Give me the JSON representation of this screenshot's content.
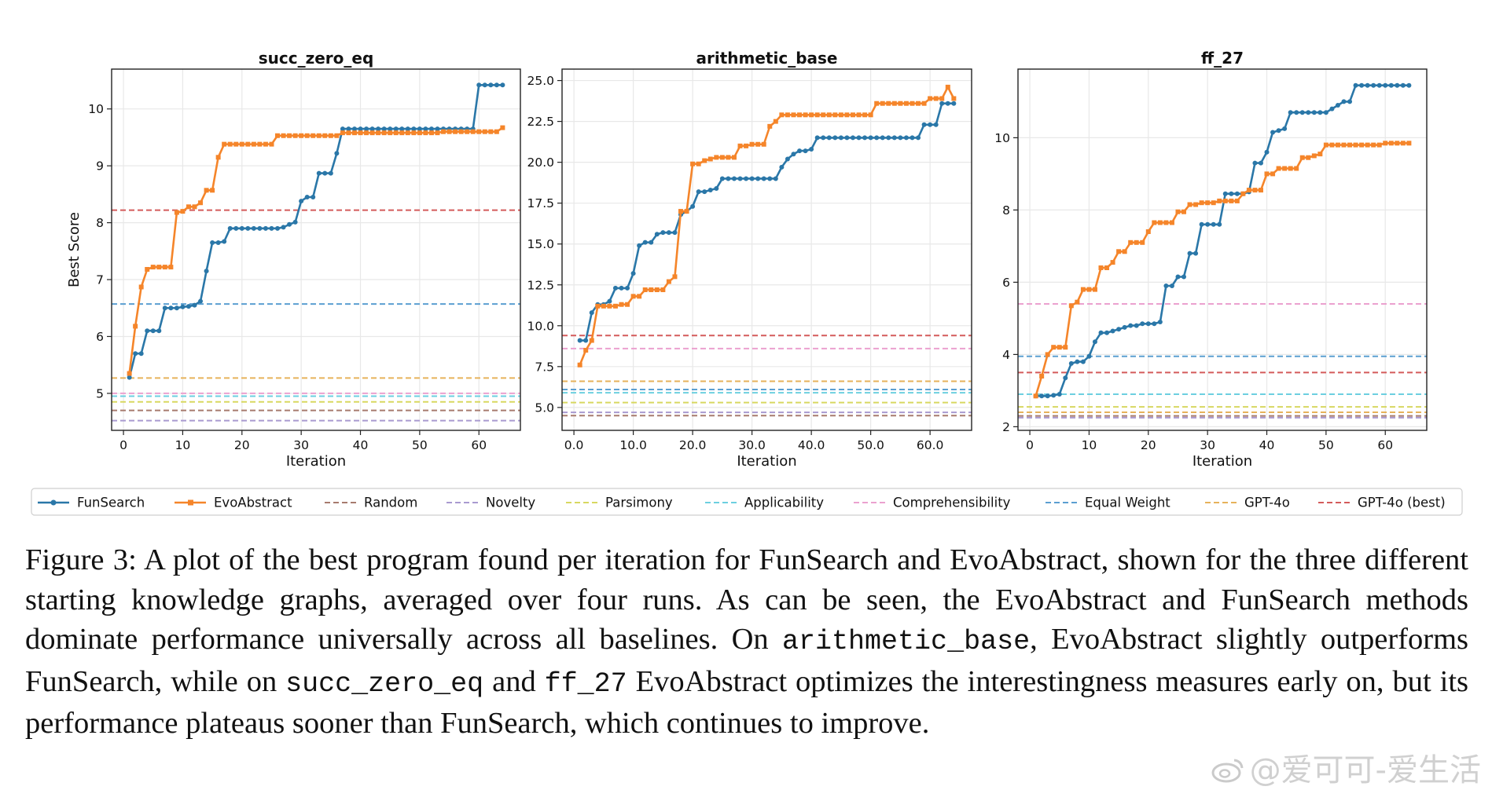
{
  "chart_data": [
    {
      "type": "line",
      "title": "succ_zero_eq",
      "xlabel": "Iteration",
      "ylabel": "Best Score",
      "xlim": [
        -2,
        67
      ],
      "ylim": [
        4.35,
        10.7
      ],
      "xticks": [
        0,
        10,
        20,
        30,
        40,
        50,
        60
      ],
      "yticks": [
        5,
        6,
        7,
        8,
        9,
        10
      ],
      "tick_format": "int",
      "grid": true,
      "series": [
        {
          "name": "FunSearch",
          "x": [
            1,
            2,
            3,
            4,
            5,
            6,
            7,
            8,
            9,
            10,
            11,
            12,
            13,
            14,
            15,
            16,
            17,
            18,
            19,
            20,
            21,
            22,
            23,
            24,
            25,
            26,
            27,
            28,
            29,
            30,
            31,
            32,
            33,
            34,
            35,
            36,
            37,
            38,
            39,
            40,
            41,
            42,
            43,
            44,
            45,
            46,
            47,
            48,
            49,
            50,
            51,
            52,
            53,
            54,
            55,
            56,
            57,
            58,
            59,
            60,
            61,
            62,
            63,
            64
          ],
          "y": [
            5.28,
            5.7,
            5.7,
            6.1,
            6.1,
            6.1,
            6.5,
            6.5,
            6.5,
            6.52,
            6.53,
            6.55,
            6.62,
            7.15,
            7.65,
            7.65,
            7.67,
            7.9,
            7.9,
            7.9,
            7.9,
            7.9,
            7.9,
            7.9,
            7.9,
            7.9,
            7.92,
            7.97,
            8.01,
            8.38,
            8.45,
            8.45,
            8.87,
            8.87,
            8.87,
            9.22,
            9.65,
            9.65,
            9.65,
            9.65,
            9.65,
            9.65,
            9.65,
            9.65,
            9.65,
            9.65,
            9.65,
            9.65,
            9.65,
            9.65,
            9.65,
            9.65,
            9.65,
            9.65,
            9.65,
            9.65,
            9.65,
            9.65,
            9.65,
            10.42,
            10.42,
            10.42,
            10.42,
            10.42
          ]
        },
        {
          "name": "EvoAbstract",
          "x": [
            1,
            2,
            3,
            4,
            5,
            6,
            7,
            8,
            9,
            10,
            11,
            12,
            13,
            14,
            15,
            16,
            17,
            18,
            19,
            20,
            21,
            22,
            23,
            24,
            25,
            26,
            27,
            28,
            29,
            30,
            31,
            32,
            33,
            34,
            35,
            36,
            37,
            38,
            39,
            40,
            41,
            42,
            43,
            44,
            45,
            46,
            47,
            48,
            49,
            50,
            51,
            52,
            53,
            54,
            55,
            56,
            57,
            58,
            59,
            60,
            61,
            62,
            63,
            64
          ],
          "y": [
            5.35,
            6.18,
            6.87,
            7.18,
            7.22,
            7.22,
            7.22,
            7.22,
            8.18,
            8.2,
            8.28,
            8.28,
            8.35,
            8.57,
            8.57,
            9.15,
            9.38,
            9.38,
            9.38,
            9.38,
            9.38,
            9.38,
            9.38,
            9.38,
            9.38,
            9.53,
            9.53,
            9.53,
            9.53,
            9.53,
            9.53,
            9.53,
            9.53,
            9.53,
            9.53,
            9.53,
            9.58,
            9.58,
            9.58,
            9.58,
            9.58,
            9.58,
            9.58,
            9.58,
            9.58,
            9.58,
            9.58,
            9.58,
            9.58,
            9.58,
            9.58,
            9.58,
            9.58,
            9.6,
            9.6,
            9.6,
            9.6,
            9.6,
            9.6,
            9.6,
            9.6,
            9.6,
            9.6,
            9.67
          ]
        }
      ],
      "baselines": {
        "Random": 4.7,
        "Novelty": 4.52,
        "Parsimony": 4.85,
        "Applicability": 4.95,
        "Comprehensibility": 5.0,
        "Equal Weight": 6.57,
        "GPT-4o": 5.27,
        "GPT-4o (best)": 8.22
      }
    },
    {
      "type": "line",
      "title": "arithmetic_base",
      "xlabel": "Iteration",
      "ylabel": "",
      "xlim": [
        -2,
        67
      ],
      "ylim": [
        3.6,
        25.7
      ],
      "xticks": [
        0,
        10,
        20,
        30,
        40,
        50,
        60
      ],
      "yticks": [
        5.0,
        7.5,
        10.0,
        12.5,
        15.0,
        17.5,
        20.0,
        22.5,
        25.0
      ],
      "tick_format": "one_decimal",
      "grid": true,
      "series": [
        {
          "name": "FunSearch",
          "x": [
            1,
            2,
            3,
            4,
            5,
            6,
            7,
            8,
            9,
            10,
            11,
            12,
            13,
            14,
            15,
            16,
            17,
            18,
            19,
            20,
            21,
            22,
            23,
            24,
            25,
            26,
            27,
            28,
            29,
            30,
            31,
            32,
            33,
            34,
            35,
            36,
            37,
            38,
            39,
            40,
            41,
            42,
            43,
            44,
            45,
            46,
            47,
            48,
            49,
            50,
            51,
            52,
            53,
            54,
            55,
            56,
            57,
            58,
            59,
            60,
            61,
            62,
            63,
            64
          ],
          "y": [
            9.1,
            9.1,
            10.8,
            11.3,
            11.3,
            11.5,
            12.3,
            12.3,
            12.3,
            13.2,
            14.9,
            15.1,
            15.1,
            15.6,
            15.7,
            15.7,
            15.7,
            16.8,
            17.0,
            17.3,
            18.2,
            18.2,
            18.3,
            18.4,
            19.0,
            19.0,
            19.0,
            19.0,
            19.0,
            19.0,
            19.0,
            19.0,
            19.0,
            19.0,
            19.7,
            20.2,
            20.5,
            20.7,
            20.7,
            20.8,
            21.5,
            21.5,
            21.5,
            21.5,
            21.5,
            21.5,
            21.5,
            21.5,
            21.5,
            21.5,
            21.5,
            21.5,
            21.5,
            21.5,
            21.5,
            21.5,
            21.5,
            21.5,
            22.3,
            22.3,
            22.3,
            23.6,
            23.6,
            23.6
          ]
        },
        {
          "name": "EvoAbstract",
          "x": [
            1,
            2,
            3,
            4,
            5,
            6,
            7,
            8,
            9,
            10,
            11,
            12,
            13,
            14,
            15,
            16,
            17,
            18,
            19,
            20,
            21,
            22,
            23,
            24,
            25,
            26,
            27,
            28,
            29,
            30,
            31,
            32,
            33,
            34,
            35,
            36,
            37,
            38,
            39,
            40,
            41,
            42,
            43,
            44,
            45,
            46,
            47,
            48,
            49,
            50,
            51,
            52,
            53,
            54,
            55,
            56,
            57,
            58,
            59,
            60,
            61,
            62,
            63,
            64
          ],
          "y": [
            7.6,
            8.5,
            9.1,
            11.2,
            11.2,
            11.2,
            11.2,
            11.3,
            11.3,
            11.8,
            11.8,
            12.2,
            12.2,
            12.2,
            12.2,
            12.7,
            13.0,
            17.0,
            17.0,
            19.9,
            19.9,
            20.1,
            20.2,
            20.3,
            20.3,
            20.3,
            20.3,
            21.0,
            21.0,
            21.1,
            21.1,
            21.1,
            22.2,
            22.5,
            22.9,
            22.9,
            22.9,
            22.9,
            22.9,
            22.9,
            22.9,
            22.9,
            22.9,
            22.9,
            22.9,
            22.9,
            22.9,
            22.9,
            22.9,
            22.9,
            23.6,
            23.6,
            23.6,
            23.6,
            23.6,
            23.6,
            23.6,
            23.6,
            23.6,
            23.9,
            23.9,
            23.9,
            24.6,
            23.9
          ]
        }
      ],
      "baselines": {
        "Random": 4.5,
        "Novelty": 4.7,
        "Parsimony": 5.3,
        "Applicability": 5.9,
        "Comprehensibility": 8.6,
        "Equal Weight": 6.1,
        "GPT-4o": 6.6,
        "GPT-4o (best)": 9.4
      }
    },
    {
      "type": "line",
      "title": "ff_27",
      "xlabel": "Iteration",
      "ylabel": "",
      "xlim": [
        -2,
        67
      ],
      "ylim": [
        1.9,
        11.9
      ],
      "xticks": [
        0,
        10,
        20,
        30,
        40,
        50,
        60
      ],
      "yticks": [
        2,
        4,
        6,
        8,
        10
      ],
      "tick_format": "int",
      "grid": true,
      "series": [
        {
          "name": "FunSearch",
          "x": [
            1,
            2,
            3,
            4,
            5,
            6,
            7,
            8,
            9,
            10,
            11,
            12,
            13,
            14,
            15,
            16,
            17,
            18,
            19,
            20,
            21,
            22,
            23,
            24,
            25,
            26,
            27,
            28,
            29,
            30,
            31,
            32,
            33,
            34,
            35,
            36,
            37,
            38,
            39,
            40,
            41,
            42,
            43,
            44,
            45,
            46,
            47,
            48,
            49,
            50,
            51,
            52,
            53,
            54,
            55,
            56,
            57,
            58,
            59,
            60,
            61,
            62,
            63,
            64
          ],
          "y": [
            2.85,
            2.85,
            2.85,
            2.87,
            2.9,
            3.35,
            3.75,
            3.8,
            3.8,
            3.95,
            4.35,
            4.6,
            4.6,
            4.65,
            4.7,
            4.75,
            4.8,
            4.8,
            4.85,
            4.85,
            4.85,
            4.9,
            5.9,
            5.9,
            6.15,
            6.15,
            6.8,
            6.8,
            7.6,
            7.6,
            7.6,
            7.6,
            8.45,
            8.45,
            8.45,
            8.45,
            8.5,
            9.3,
            9.3,
            9.6,
            10.15,
            10.2,
            10.25,
            10.7,
            10.7,
            10.7,
            10.7,
            10.7,
            10.7,
            10.7,
            10.8,
            10.9,
            11.0,
            11.0,
            11.45,
            11.45,
            11.45,
            11.45,
            11.45,
            11.45,
            11.45,
            11.45,
            11.45,
            11.45
          ]
        },
        {
          "name": "EvoAbstract",
          "x": [
            1,
            2,
            3,
            4,
            5,
            6,
            7,
            8,
            9,
            10,
            11,
            12,
            13,
            14,
            15,
            16,
            17,
            18,
            19,
            20,
            21,
            22,
            23,
            24,
            25,
            26,
            27,
            28,
            29,
            30,
            31,
            32,
            33,
            34,
            35,
            36,
            37,
            38,
            39,
            40,
            41,
            42,
            43,
            44,
            45,
            46,
            47,
            48,
            49,
            50,
            51,
            52,
            53,
            54,
            55,
            56,
            57,
            58,
            59,
            60,
            61,
            62,
            63,
            64
          ],
          "y": [
            2.85,
            3.4,
            4.0,
            4.2,
            4.2,
            4.2,
            5.35,
            5.45,
            5.8,
            5.8,
            5.8,
            6.4,
            6.4,
            6.55,
            6.85,
            6.85,
            7.1,
            7.1,
            7.1,
            7.4,
            7.65,
            7.65,
            7.65,
            7.65,
            7.95,
            7.95,
            8.15,
            8.15,
            8.2,
            8.2,
            8.2,
            8.25,
            8.25,
            8.25,
            8.25,
            8.45,
            8.55,
            8.55,
            8.55,
            9.0,
            9.0,
            9.15,
            9.15,
            9.15,
            9.15,
            9.45,
            9.45,
            9.5,
            9.55,
            9.8,
            9.8,
            9.8,
            9.8,
            9.8,
            9.8,
            9.8,
            9.8,
            9.8,
            9.8,
            9.85,
            9.85,
            9.85,
            9.85,
            9.85
          ]
        }
      ],
      "baselines": {
        "Random": 2.3,
        "Novelty": 2.25,
        "Parsimony": 2.55,
        "Applicability": 2.9,
        "Comprehensibility": 5.4,
        "Equal Weight": 3.95,
        "GPT-4o": 2.4,
        "GPT-4o (best)": 3.5
      }
    }
  ],
  "legend": {
    "items": [
      {
        "name": "FunSearch",
        "color": "#2a77a8",
        "style": "marker-line"
      },
      {
        "name": "EvoAbstract",
        "color": "#f5852a",
        "style": "marker-line"
      },
      {
        "name": "Random",
        "color": "#a77b6e",
        "style": "dashed"
      },
      {
        "name": "Novelty",
        "color": "#a99ad0",
        "style": "dashed"
      },
      {
        "name": "Parsimony",
        "color": "#d8d860",
        "style": "dashed"
      },
      {
        "name": "Applicability",
        "color": "#6ccfe0",
        "style": "dashed"
      },
      {
        "name": "Comprehensibility",
        "color": "#eba1cf",
        "style": "dashed"
      },
      {
        "name": "Equal Weight",
        "color": "#5b9fd1",
        "style": "dashed"
      },
      {
        "name": "GPT-4o",
        "color": "#e6b25b",
        "style": "dashed"
      },
      {
        "name": "GPT-4o (best)",
        "color": "#d45b5b",
        "style": "dashed"
      }
    ]
  },
  "caption": {
    "part1": "Figure 3:  A plot of the best program found per iteration for FunSearch and EvoAbstract, shown for the three different starting knowledge graphs, averaged over four runs.  As can be seen, the EvoAbstract and FunSearch methods dominate performance universally across all baselines.  On ",
    "code1": "arithmetic_base",
    "part2": ", EvoAbstract slightly outperforms FunSearch, while on ",
    "code2": "succ_zero_eq",
    "part3": " and ",
    "code3": "ff_27",
    "part4": " EvoAbstract optimizes the interestingness measures early on, but its performance plateaus sooner than FunSearch, which continues to improve."
  },
  "watermark": {
    "text": "@爱可可-爱生活"
  }
}
